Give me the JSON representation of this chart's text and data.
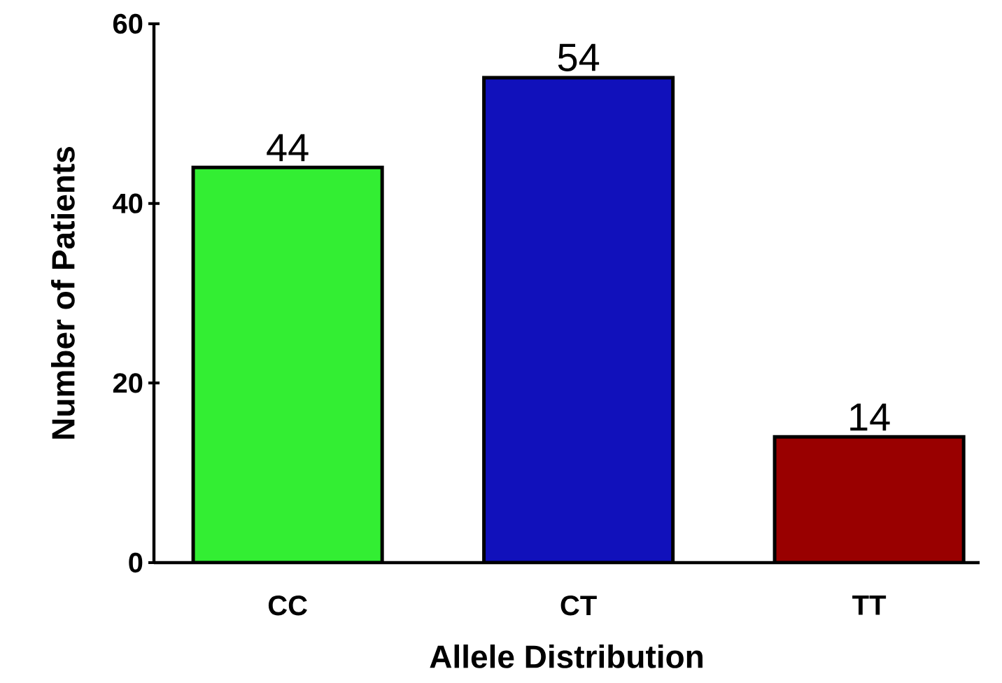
{
  "chart_data": {
    "type": "bar",
    "xlabel": "Allele Distribution",
    "ylabel": "Number of Patients",
    "categories": [
      "CC",
      "CT",
      "TT"
    ],
    "values": [
      44,
      54,
      14
    ],
    "colors": [
      "#33ee33",
      "#1111bb",
      "#990000"
    ],
    "ylim": [
      0,
      60
    ],
    "yticks": [
      0,
      20,
      40,
      60
    ],
    "data_labels": true,
    "grid": false
  }
}
